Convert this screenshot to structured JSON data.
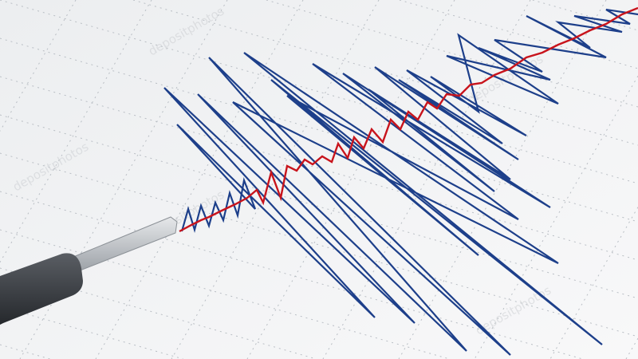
{
  "scene": {
    "subject": "seismograph",
    "colors": {
      "paper": "#f3f4f5",
      "grid": "#b9bec4",
      "trace_blue": "#1d3f8a",
      "trace_red": "#c8141c",
      "pen_handle": "#3a3d42",
      "pen_rod": "#c9ccd0"
    },
    "watermark": "depositphotos"
  }
}
